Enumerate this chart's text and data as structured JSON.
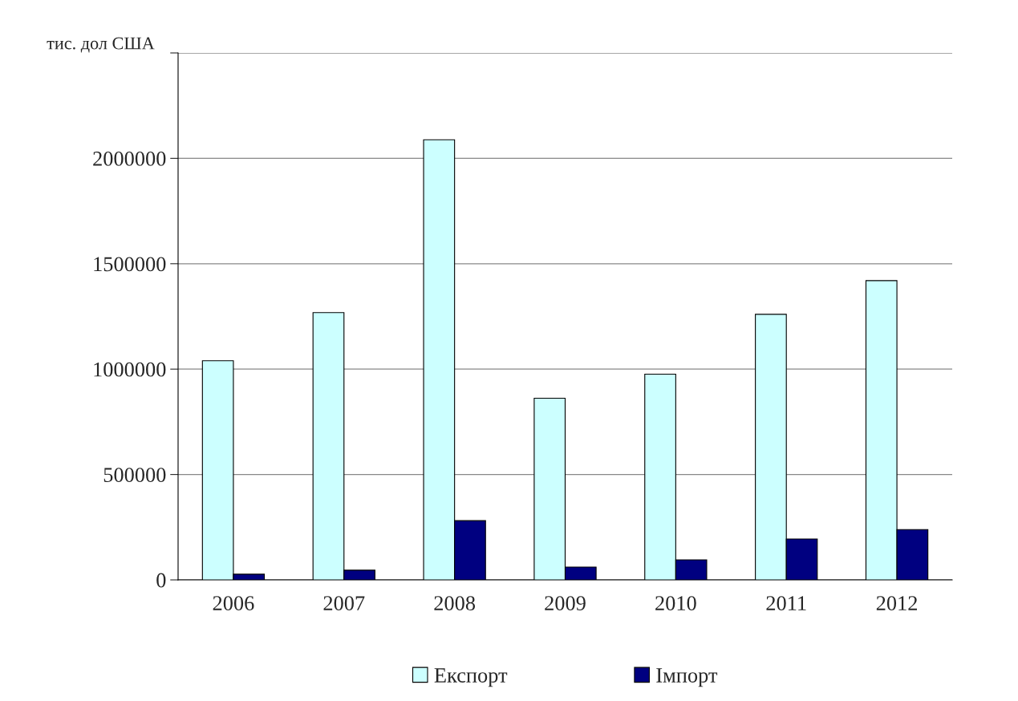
{
  "chart_data": {
    "type": "bar",
    "ylabel": "тис. дол США",
    "categories": [
      "2006",
      "2007",
      "2008",
      "2009",
      "2010",
      "2011",
      "2012"
    ],
    "series": [
      {
        "name": "Експорт",
        "color": "#ccffff",
        "values": [
          1040000,
          1268000,
          2088000,
          862000,
          976000,
          1260000,
          1420000
        ]
      },
      {
        "name": "Імпорт",
        "color": "#000080",
        "values": [
          27000,
          46000,
          281000,
          61000,
          95000,
          194000,
          239000
        ]
      }
    ],
    "ylim": [
      0,
      2500000
    ],
    "yticks": [
      0,
      500000,
      1000000,
      1500000,
      2000000,
      {
        "value": 2500000,
        "label": null
      }
    ],
    "grid": "y",
    "legend": "bottom"
  }
}
